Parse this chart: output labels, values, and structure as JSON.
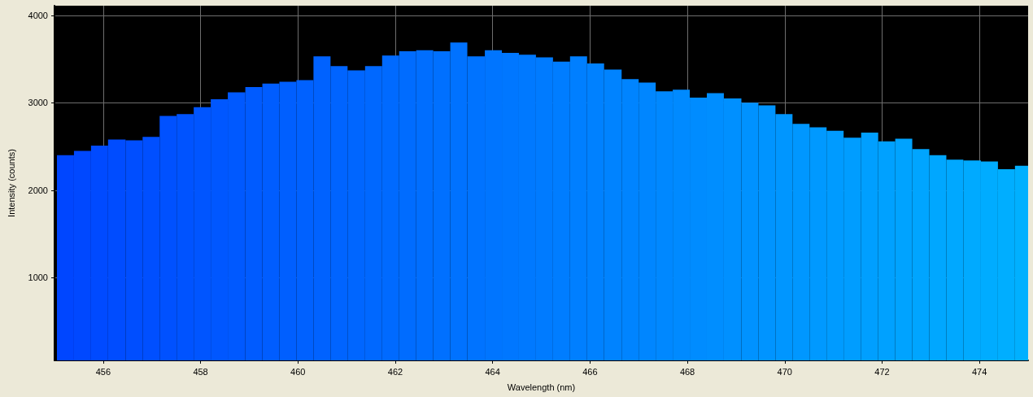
{
  "chart_data": {
    "type": "histogram",
    "xlabel": "Wavelength (nm)",
    "ylabel": "Intensity (counts)",
    "bins": [
      455.05,
      455.4,
      455.75,
      456.1,
      456.46,
      456.81,
      457.16,
      457.51,
      457.86,
      458.21,
      458.56,
      458.92,
      459.27,
      459.62,
      459.97,
      460.32,
      460.67,
      461.02,
      461.38,
      461.73,
      462.08,
      462.43,
      462.78,
      463.13,
      463.48,
      463.84,
      464.19,
      464.54,
      464.89,
      465.24,
      465.59,
      465.94,
      466.29,
      466.65,
      467.0,
      467.35,
      467.7,
      468.05,
      468.4,
      468.75,
      469.11,
      469.46,
      469.81,
      470.16,
      470.51,
      470.86,
      471.21,
      471.57,
      471.92,
      472.27,
      472.62,
      472.97,
      473.32,
      473.67,
      474.03,
      474.38,
      474.73,
      475.0
    ],
    "values": [
      2400,
      2450,
      2510,
      2580,
      2570,
      2610,
      2850,
      2870,
      2950,
      3040,
      3120,
      3180,
      3220,
      3240,
      3260,
      3530,
      3420,
      3370,
      3420,
      3540,
      3590,
      3600,
      3590,
      3690,
      3530,
      3600,
      3570,
      3550,
      3520,
      3470,
      3530,
      3450,
      3380,
      3270,
      3230,
      3130,
      3150,
      3060,
      3110,
      3050,
      3000,
      2970,
      2870,
      2760,
      2720,
      2680,
      2600,
      2660,
      2560,
      2590,
      2470,
      2400,
      2350,
      2340,
      2330,
      2240,
      2280
    ],
    "colors": [
      "#0046ff",
      "#0048ff",
      "#004aff",
      "#004cff",
      "#004eff",
      "#004fff",
      "#0051ff",
      "#0053ff",
      "#0055ff",
      "#0057ff",
      "#0059ff",
      "#005bff",
      "#005dff",
      "#005fff",
      "#0061ff",
      "#0062ff",
      "#0064ff",
      "#0066ff",
      "#0068ff",
      "#006aff",
      "#006cff",
      "#006eff",
      "#0070ff",
      "#0072ff",
      "#0073ff",
      "#0075ff",
      "#0077ff",
      "#0079ff",
      "#007bff",
      "#007dff",
      "#007fff",
      "#0081ff",
      "#0083ff",
      "#0084ff",
      "#0086ff",
      "#0088ff",
      "#008aff",
      "#008cff",
      "#008eff",
      "#0090ff",
      "#0092ff",
      "#0094ff",
      "#0096ff",
      "#0097ff",
      "#0099ff",
      "#009bff",
      "#009dff",
      "#009fff",
      "#00a1ff",
      "#00a3ff",
      "#00a5ff",
      "#00a7ff",
      "#00a8ff",
      "#00aaff",
      "#00acff",
      "#00aeff",
      "#00b0ff"
    ],
    "xlim": [
      455,
      475
    ],
    "xticks": [
      456,
      458,
      460,
      462,
      464,
      466,
      468,
      470,
      472,
      474
    ],
    "ylim": [
      55,
      4110
    ],
    "yticks": [
      1000,
      2000,
      3000,
      4000
    ],
    "grid": true
  }
}
